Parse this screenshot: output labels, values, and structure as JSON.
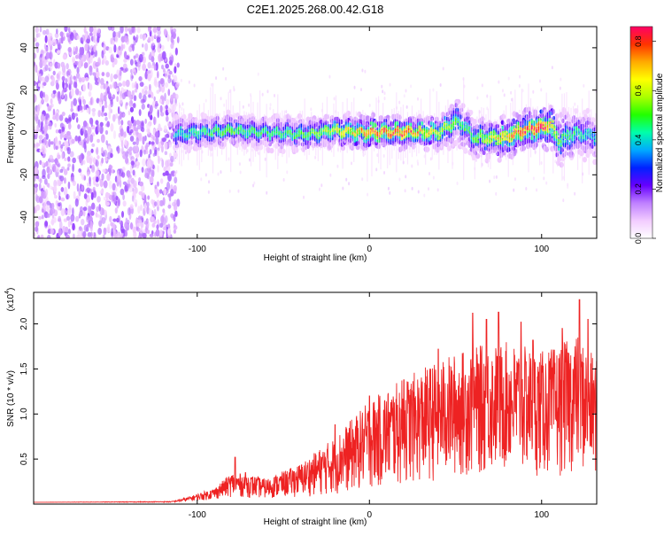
{
  "figure_title": "C2E1.2025.268.00.42.G18",
  "colors": {
    "snr_line": "#ee2222",
    "frame": "#000000",
    "background": "#ffffff"
  },
  "chart_data": [
    {
      "type": "heatmap",
      "title": "C2E1.2025.268.00.42.G18",
      "xlabel": "Height of straight line (km)",
      "ylabel": "Frequency (Hz)",
      "xlim": [
        -195,
        132
      ],
      "ylim": [
        -50,
        50
      ],
      "xticks": [
        -100,
        0,
        100
      ],
      "xtick_labels": [
        "-100",
        "0",
        "100"
      ],
      "yticks": [
        -40,
        -20,
        0,
        20,
        40
      ],
      "ytick_labels": [
        "-40",
        "-20",
        "0",
        "20",
        "40"
      ],
      "colorbar": {
        "label": "Normalized spectral amplitude",
        "range": [
          0.0,
          0.86
        ],
        "ticks": [
          0.0,
          0.2,
          0.4,
          0.6,
          0.8
        ],
        "tick_labels": [
          "0.0",
          "0.2",
          "0.4",
          "0.6",
          "0.8"
        ],
        "colormap": [
          "#ffffff",
          "#f2ccff",
          "#bf80ff",
          "#6600ff",
          "#0022ff",
          "#00aaff",
          "#00ffaa",
          "#22ff00",
          "#aaff00",
          "#ffff00",
          "#ffaa00",
          "#ff3300",
          "#ff0066"
        ]
      },
      "noise_region_x": [
        -195,
        -115
      ],
      "doppler_ridge": {
        "x": [
          -115,
          -100,
          -80,
          -60,
          -40,
          -20,
          0,
          20,
          40,
          50,
          55,
          60,
          70,
          80,
          90,
          100,
          105,
          110,
          120,
          132
        ],
        "frequency": [
          -1,
          0,
          1,
          0,
          -1,
          1,
          0,
          0,
          0,
          5,
          3,
          -2,
          -3,
          -2,
          1,
          2,
          4,
          -4,
          0,
          -2
        ],
        "half_width": [
          5,
          4,
          4,
          4,
          4,
          4,
          4,
          4,
          4,
          6,
          6,
          5,
          5,
          5,
          5,
          5,
          6,
          7,
          6,
          6
        ],
        "peak_amplitude": [
          0.4,
          0.45,
          0.5,
          0.45,
          0.5,
          0.6,
          0.75,
          0.8,
          0.6,
          0.5,
          0.45,
          0.5,
          0.6,
          0.7,
          0.8,
          0.86,
          0.7,
          0.5,
          0.45,
          0.4
        ]
      }
    },
    {
      "type": "line",
      "xlabel": "Height of straight line (km)",
      "ylabel": "SNR (10 * v/v)",
      "y_multiplier_label": "(x10",
      "y_multiplier_exp": "4",
      "y_multiplier_close": ")",
      "xlim": [
        -195,
        132
      ],
      "ylim": [
        0,
        2.35
      ],
      "xticks": [
        -100,
        0,
        100
      ],
      "xtick_labels": [
        "-100",
        "0",
        "100"
      ],
      "yticks": [
        0.5,
        1.0,
        1.5,
        2.0
      ],
      "ytick_labels": [
        "0.5",
        "1.0",
        "1.5",
        "2.0"
      ],
      "series": [
        {
          "name": "SNR",
          "envelope_x": [
            -195,
            -115,
            -105,
            -90,
            -80,
            -70,
            -60,
            -40,
            -20,
            0,
            20,
            40,
            60,
            80,
            100,
            110,
            120,
            132
          ],
          "envelope_y": [
            0.02,
            0.03,
            0.08,
            0.18,
            0.35,
            0.33,
            0.28,
            0.45,
            0.75,
            1.15,
            1.4,
            1.6,
            1.75,
            1.8,
            1.7,
            1.75,
            1.9,
            1.6
          ],
          "baseline_y": [
            0.02,
            0.02,
            0.03,
            0.05,
            0.08,
            0.07,
            0.06,
            0.08,
            0.1,
            0.15,
            0.2,
            0.25,
            0.3,
            0.35,
            0.3,
            0.3,
            0.35,
            0.3
          ],
          "peaks": [
            [
              -78,
              0.52
            ],
            [
              -72,
              0.35
            ],
            [
              -20,
              0.88
            ],
            [
              0,
              1.2
            ],
            [
              20,
              1.38
            ],
            [
              40,
              1.72
            ],
            [
              60,
              2.12
            ],
            [
              68,
              2.05
            ],
            [
              75,
              2.13
            ],
            [
              88,
              2.02
            ],
            [
              95,
              1.82
            ],
            [
              112,
              1.95
            ],
            [
              122,
              2.27
            ],
            [
              127,
              2.05
            ]
          ]
        }
      ]
    }
  ]
}
